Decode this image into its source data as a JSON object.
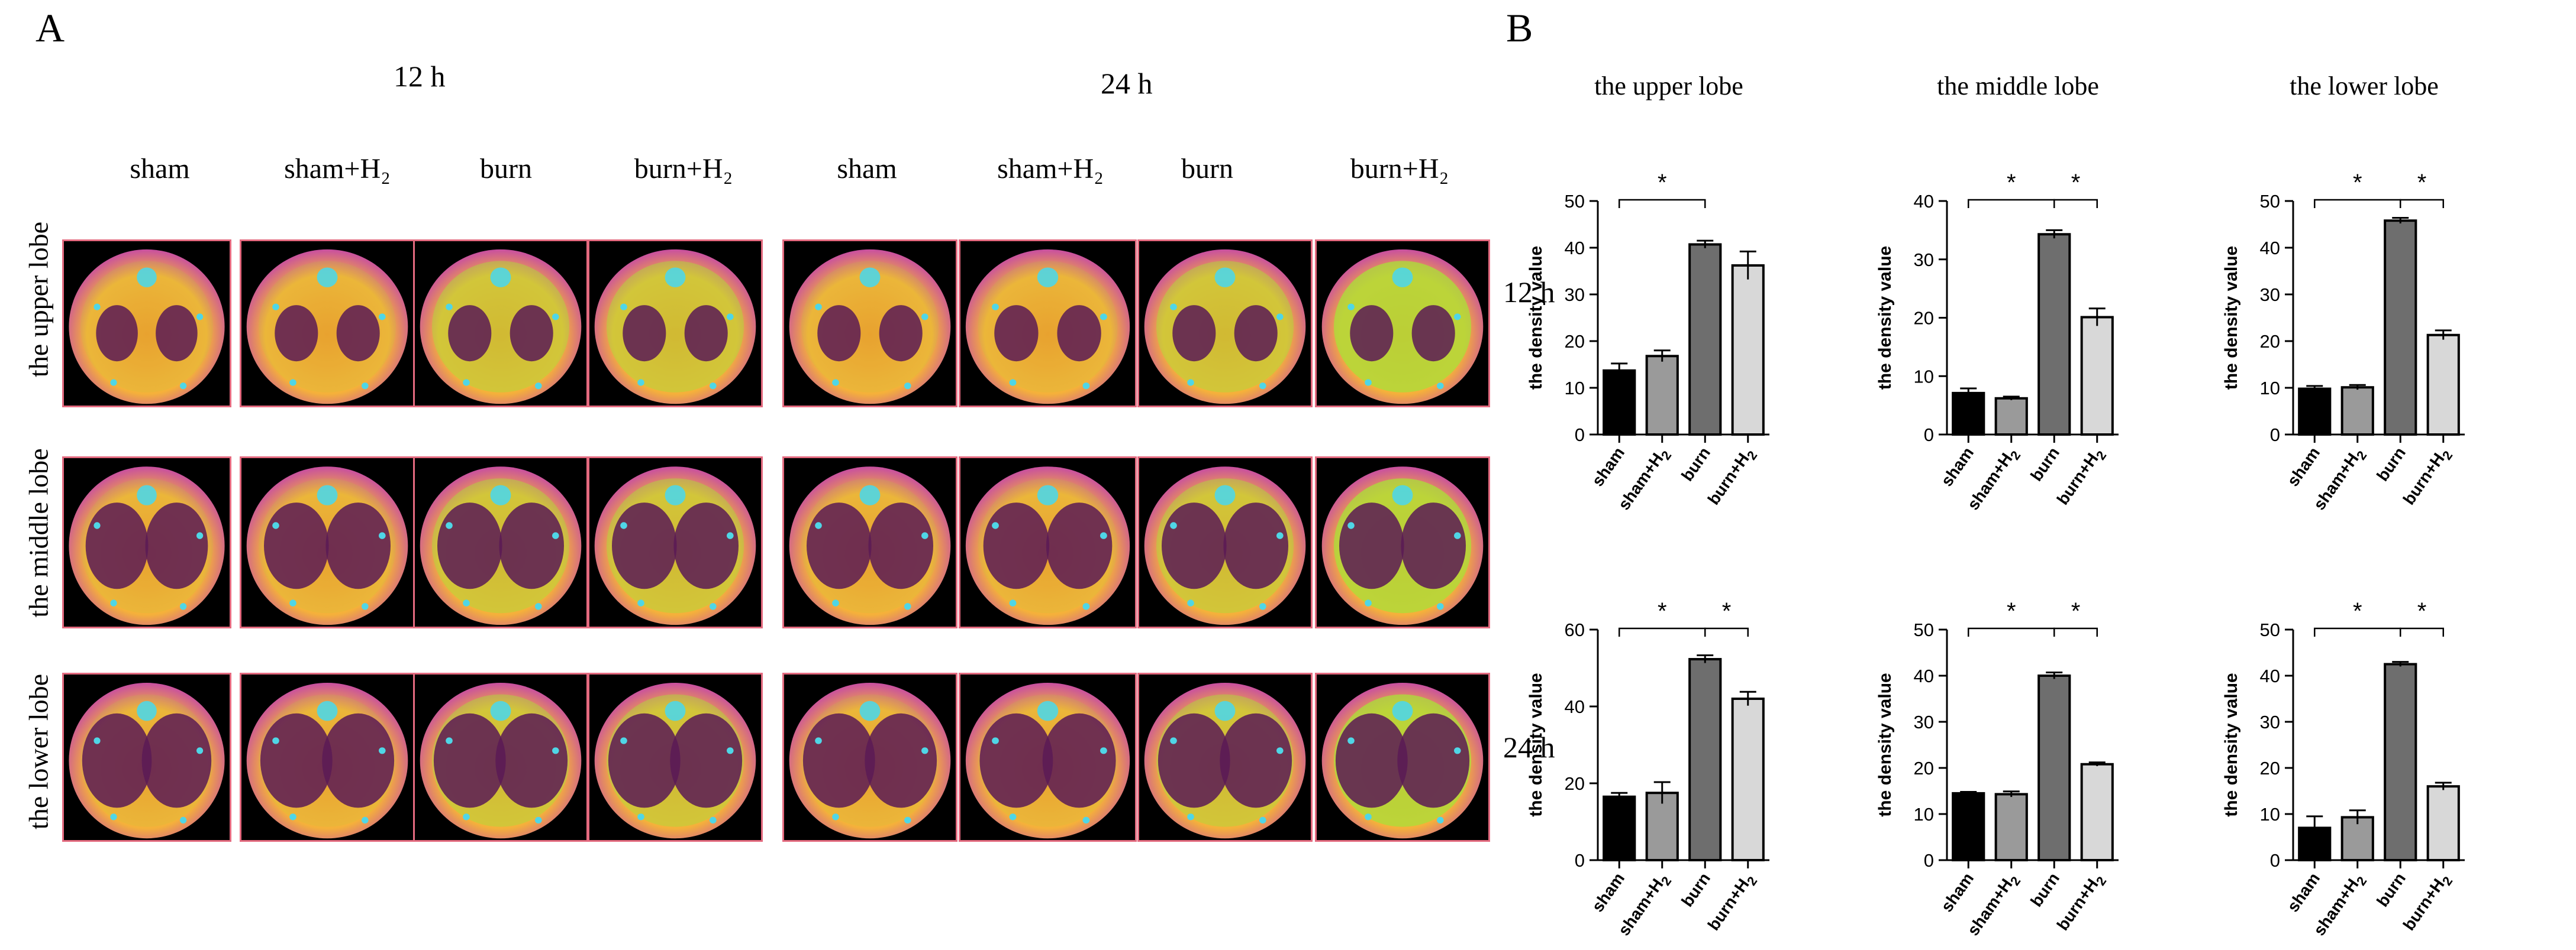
{
  "panel_a": {
    "letter": "A",
    "time_12": "12 h",
    "time_24": "24 h",
    "columns_12": [
      "sham",
      "sham+H₂",
      "burn",
      "burn+H₂"
    ],
    "columns_24": [
      "sham",
      "sham+H₂",
      "burn",
      "burn+H₂"
    ],
    "rows": [
      "the upper lobe",
      "the middle lobe",
      "the lower lobe"
    ],
    "right_labels": [
      "12 h",
      "24 h"
    ]
  },
  "panel_b": {
    "letter": "B"
  },
  "colors": {
    "sham": "#000000",
    "sham_h2": "#9a9a9a",
    "burn": "#6e6e6e",
    "burn_h2": "#d8d8d8",
    "tile_border": "#e46a7f",
    "scan_orange": "#f29a2e",
    "scan_purple": "#5a1a55",
    "scan_green": "#a8e03a",
    "scan_cyan": "#4fd6e6"
  },
  "chart_data": [
    {
      "type": "bar",
      "title": "the upper lobe",
      "time": "12 h",
      "categories": [
        "sham",
        "sham+H₂",
        "burn",
        "burn+H₂"
      ],
      "values": [
        13.7,
        16.8,
        40.7,
        36.2
      ],
      "errors": [
        1.5,
        1.2,
        0.8,
        3.0
      ],
      "ylabel": "the density value",
      "ylim": [
        0,
        50
      ],
      "yticks": [
        0,
        10,
        20,
        30,
        40,
        50
      ],
      "significance": [
        {
          "from": 0,
          "to": 2,
          "label": "*"
        }
      ]
    },
    {
      "type": "bar",
      "title": "the middle lobe",
      "time": "12 h",
      "categories": [
        "sham",
        "sham+H₂",
        "burn",
        "burn+H₂"
      ],
      "values": [
        7.1,
        6.2,
        34.3,
        20.1
      ],
      "errors": [
        0.8,
        0.3,
        0.7,
        1.5
      ],
      "ylabel": "the density value",
      "ylim": [
        0,
        40
      ],
      "yticks": [
        0,
        10,
        20,
        30,
        40
      ],
      "significance": [
        {
          "from": 0,
          "to": 2,
          "label": "*"
        },
        {
          "from": 2,
          "to": 3,
          "label": "*"
        }
      ]
    },
    {
      "type": "bar",
      "title": "the lower lobe",
      "time": "12 h",
      "categories": [
        "sham",
        "sham+H₂",
        "burn",
        "burn+H₂"
      ],
      "values": [
        9.8,
        10.1,
        45.8,
        21.3
      ],
      "errors": [
        0.6,
        0.5,
        0.6,
        1.0
      ],
      "ylabel": "the density value",
      "ylim": [
        0,
        50
      ],
      "yticks": [
        0,
        10,
        20,
        30,
        40,
        50
      ],
      "significance": [
        {
          "from": 0,
          "to": 2,
          "label": "*"
        },
        {
          "from": 2,
          "to": 3,
          "label": "*"
        }
      ]
    },
    {
      "type": "bar",
      "title": "the upper lobe",
      "time": "24 h",
      "categories": [
        "sham",
        "sham+H₂",
        "burn",
        "burn+H₂"
      ],
      "values": [
        16.5,
        17.5,
        52.3,
        42.0
      ],
      "errors": [
        1.0,
        2.8,
        1.0,
        1.8
      ],
      "ylabel": "the density value",
      "ylim": [
        0,
        60
      ],
      "yticks": [
        0,
        20,
        40,
        60
      ],
      "significance": [
        {
          "from": 0,
          "to": 2,
          "label": "*"
        },
        {
          "from": 2,
          "to": 3,
          "label": "*"
        }
      ]
    },
    {
      "type": "bar",
      "title": "the middle lobe",
      "time": "24 h",
      "categories": [
        "sham",
        "sham+H₂",
        "burn",
        "burn+H₂"
      ],
      "values": [
        14.5,
        14.3,
        40.0,
        20.8
      ],
      "errors": [
        0.3,
        0.6,
        0.7,
        0.4
      ],
      "ylabel": "the density value",
      "ylim": [
        0,
        50
      ],
      "yticks": [
        0,
        10,
        20,
        30,
        40,
        50
      ],
      "significance": [
        {
          "from": 0,
          "to": 2,
          "label": "*"
        },
        {
          "from": 2,
          "to": 3,
          "label": "*"
        }
      ]
    },
    {
      "type": "bar",
      "title": "the lower lobe",
      "time": "24 h",
      "categories": [
        "sham",
        "sham+H₂",
        "burn",
        "burn+H₂"
      ],
      "values": [
        7.0,
        9.3,
        42.5,
        16.0
      ],
      "errors": [
        2.5,
        1.5,
        0.5,
        0.8
      ],
      "ylabel": "the density value",
      "ylim": [
        0,
        50
      ],
      "yticks": [
        0,
        10,
        20,
        30,
        40,
        50
      ],
      "significance": [
        {
          "from": 0,
          "to": 2,
          "label": "*"
        },
        {
          "from": 2,
          "to": 3,
          "label": "*"
        }
      ]
    }
  ]
}
